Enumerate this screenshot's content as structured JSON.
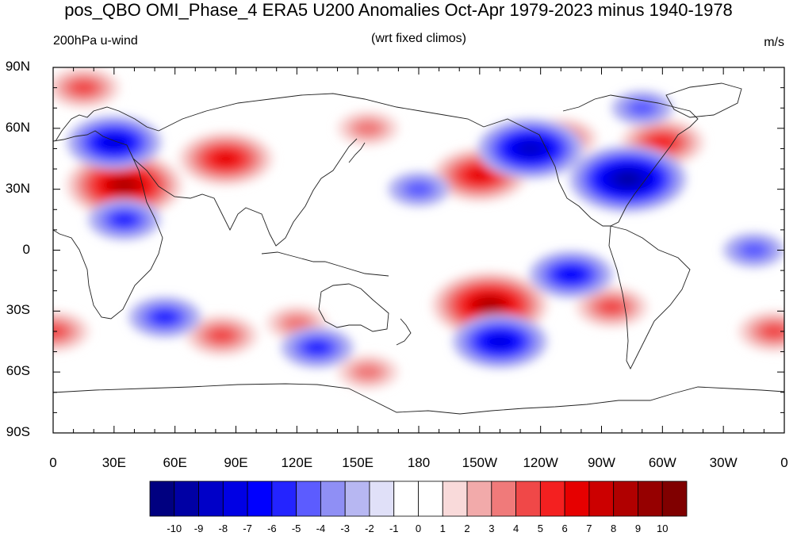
{
  "title": "pos_QBO OMI_Phase_4 ERA5 U200 Anomalies Oct-Apr 1979-2023 minus 1940-1978",
  "left_string": "200hPa u-wind",
  "center_string": "(wrt fixed climos)",
  "right_string": "m/s",
  "lat_ticks": [
    "90N",
    "60N",
    "30N",
    "0",
    "30S",
    "60S",
    "90S"
  ],
  "lon_ticks": [
    "0",
    "30E",
    "60E",
    "90E",
    "120E",
    "150E",
    "180",
    "150W",
    "120W",
    "90W",
    "60W",
    "30W",
    "0"
  ],
  "colorbar": {
    "labels": [
      "-10",
      "-9",
      "-8",
      "-7",
      "-6",
      "-5",
      "-4",
      "-3",
      "-2",
      "-1",
      "0",
      "1",
      "2",
      "3",
      "4",
      "5",
      "6",
      "7",
      "8",
      "9",
      "10"
    ],
    "colors": [
      "#000080",
      "#0000a4",
      "#0000c8",
      "#0000e4",
      "#0000ff",
      "#2424ff",
      "#5c5cff",
      "#8f8ff5",
      "#b7b7f2",
      "#e0e0f8",
      "#ffffff",
      "#ffffff",
      "#f9dada",
      "#f2aaaa",
      "#f07a7a",
      "#f04848",
      "#f42020",
      "#e60000",
      "#cc0000",
      "#b00000",
      "#960000",
      "#800000"
    ]
  },
  "chart_data": {
    "type": "heatmap",
    "variable": "200hPa u-wind anomaly",
    "units": "m/s",
    "lon_range": [
      0,
      360
    ],
    "lat_range": [
      -90,
      90
    ],
    "levels": [
      -10,
      -9,
      -8,
      -7,
      -6,
      -5,
      -4,
      -3,
      -2,
      -1,
      0,
      1,
      2,
      3,
      4,
      5,
      6,
      7,
      8,
      9,
      10
    ],
    "anomaly_centers": [
      {
        "lon": 35,
        "lat": 32,
        "value": 8
      },
      {
        "lon": 85,
        "lat": 45,
        "value": 6
      },
      {
        "lon": 15,
        "lat": 80,
        "value": 4
      },
      {
        "lon": 155,
        "lat": 60,
        "value": 3
      },
      {
        "lon": 210,
        "lat": 37,
        "value": 6
      },
      {
        "lon": 250,
        "lat": 55,
        "value": 4
      },
      {
        "lon": 300,
        "lat": 53,
        "value": 5
      },
      {
        "lon": 215,
        "lat": -27,
        "value": 8
      },
      {
        "lon": 275,
        "lat": -28,
        "value": 4
      },
      {
        "lon": 355,
        "lat": -40,
        "value": 4
      },
      {
        "lon": 0,
        "lat": -40,
        "value": 4
      },
      {
        "lon": 83,
        "lat": -42,
        "value": 4
      },
      {
        "lon": 120,
        "lat": -36,
        "value": 3
      },
      {
        "lon": 155,
        "lat": -60,
        "value": 3
      },
      {
        "lon": 30,
        "lat": 53,
        "value": -6
      },
      {
        "lon": 235,
        "lat": 50,
        "value": -7
      },
      {
        "lon": 283,
        "lat": 35,
        "value": -8
      },
      {
        "lon": 35,
        "lat": 15,
        "value": -4
      },
      {
        "lon": 55,
        "lat": -33,
        "value": -4
      },
      {
        "lon": 130,
        "lat": -48,
        "value": -4
      },
      {
        "lon": 220,
        "lat": -45,
        "value": -6
      },
      {
        "lon": 255,
        "lat": -12,
        "value": -5
      },
      {
        "lon": 180,
        "lat": 30,
        "value": -3
      },
      {
        "lon": 345,
        "lat": 0,
        "value": -3
      },
      {
        "lon": 290,
        "lat": 70,
        "value": -3
      }
    ]
  }
}
